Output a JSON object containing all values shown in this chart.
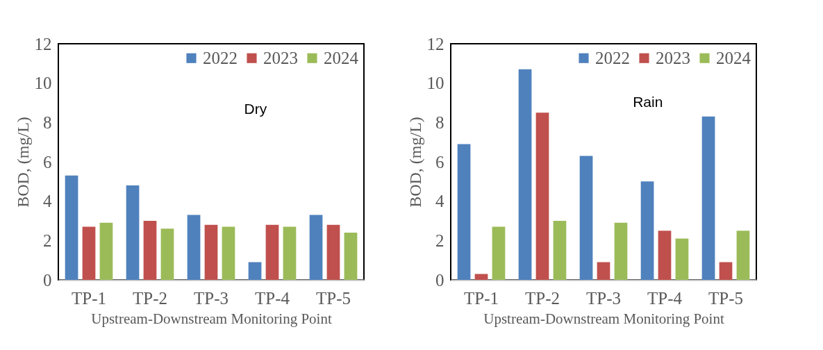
{
  "chart_data": [
    {
      "type": "bar",
      "xlabel": "Upstream-Downstream Monitoring Point",
      "ylabel": "BOD, (mg/L)",
      "annotations": [
        "Dry"
      ],
      "categories": [
        "TP-1",
        "TP-2",
        "TP-3",
        "TP-4",
        "TP-5"
      ],
      "series": [
        {
          "name": "2022",
          "color": "#4f81bd",
          "values": [
            5.3,
            4.8,
            3.3,
            0.9,
            3.3
          ]
        },
        {
          "name": "2023",
          "color": "#c0504d",
          "values": [
            2.7,
            3.0,
            2.8,
            2.8,
            2.8
          ]
        },
        {
          "name": "2024",
          "color": "#9bbb59",
          "values": [
            2.9,
            2.6,
            2.7,
            2.7,
            2.4
          ]
        }
      ],
      "ylim": [
        0,
        12
      ],
      "yticks": [
        0,
        2,
        4,
        6,
        8,
        10,
        12
      ],
      "grid": false,
      "legend": "top right"
    },
    {
      "type": "bar",
      "xlabel": "Upstream-Downstream Monitoring Point",
      "ylabel": "BOD, (mg/L)",
      "annotations": [
        "Rain"
      ],
      "categories": [
        "TP-1",
        "TP-2",
        "TP-3",
        "TP-4",
        "TP-5"
      ],
      "series": [
        {
          "name": "2022",
          "color": "#4f81bd",
          "values": [
            6.9,
            10.7,
            6.3,
            5.0,
            8.3
          ]
        },
        {
          "name": "2023",
          "color": "#c0504d",
          "values": [
            0.3,
            8.5,
            0.9,
            2.5,
            0.9
          ]
        },
        {
          "name": "2024",
          "color": "#9bbb59",
          "values": [
            2.7,
            3.0,
            2.9,
            2.1,
            2.5
          ]
        }
      ],
      "ylim": [
        0,
        12
      ],
      "yticks": [
        0,
        2,
        4,
        6,
        8,
        10,
        12
      ],
      "grid": false,
      "legend": "top right"
    }
  ]
}
